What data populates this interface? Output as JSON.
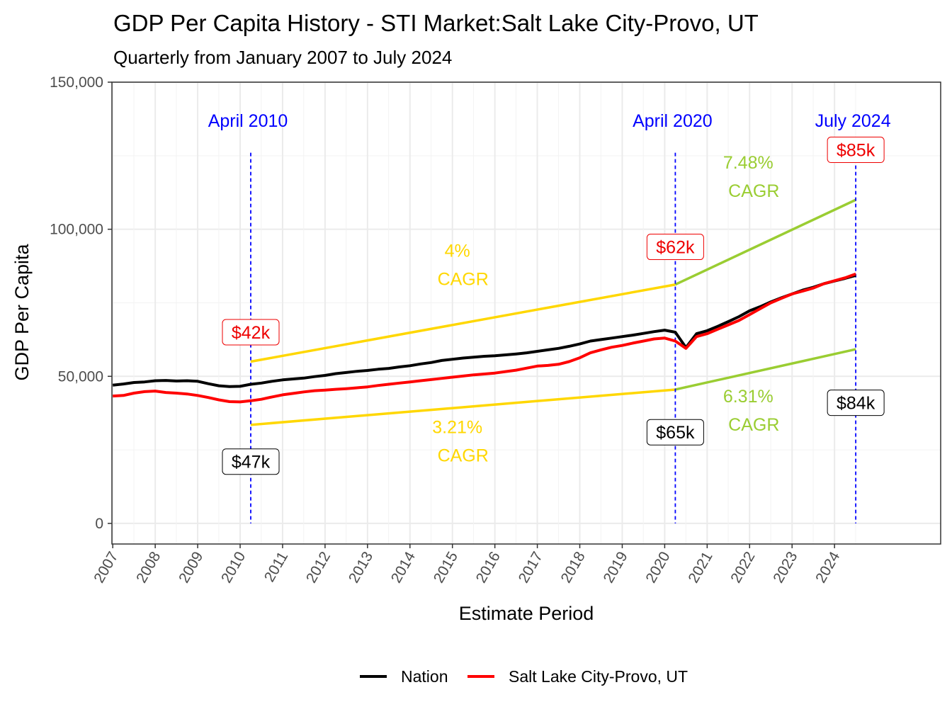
{
  "chart_data": {
    "type": "line",
    "title": "GDP Per Capita History - STI Market:Salt Lake City-Provo, UT",
    "subtitle": "Quarterly from January 2007 to July 2024",
    "xlabel": "Estimate Period",
    "ylabel": "GDP Per Capita",
    "xlim": [
      2006.98,
      2026.5
    ],
    "ylim": [
      -7000,
      150000
    ],
    "y_ticks": [
      0,
      50000,
      100000,
      150000
    ],
    "y_tick_labels": [
      "0",
      "50,000",
      "100,000",
      "150,000"
    ],
    "x_ticks": [
      "2007",
      "2008",
      "2009",
      "2010",
      "2011",
      "2012",
      "2013",
      "2014",
      "2015",
      "2016",
      "2017",
      "2018",
      "2019",
      "2020",
      "2021",
      "2022",
      "2023",
      "2024"
    ],
    "legend": {
      "position": "bottom",
      "entries": [
        {
          "name": "Nation",
          "color": "#000000"
        },
        {
          "name": "Salt Lake City-Provo, UT",
          "color": "#ff0000"
        }
      ]
    },
    "series": [
      {
        "name": "Nation",
        "color": "#000000",
        "points": [
          [
            2007.0,
            47000
          ],
          [
            2007.25,
            47400
          ],
          [
            2007.5,
            47900
          ],
          [
            2007.75,
            48100
          ],
          [
            2008.0,
            48500
          ],
          [
            2008.25,
            48600
          ],
          [
            2008.5,
            48400
          ],
          [
            2008.75,
            48500
          ],
          [
            2009.0,
            48300
          ],
          [
            2009.25,
            47500
          ],
          [
            2009.5,
            46800
          ],
          [
            2009.75,
            46500
          ],
          [
            2010.0,
            46600
          ],
          [
            2010.25,
            47300
          ],
          [
            2010.5,
            47700
          ],
          [
            2010.75,
            48300
          ],
          [
            2011.0,
            48800
          ],
          [
            2011.25,
            49100
          ],
          [
            2011.5,
            49400
          ],
          [
            2011.75,
            49900
          ],
          [
            2012.0,
            50300
          ],
          [
            2012.25,
            50900
          ],
          [
            2012.5,
            51300
          ],
          [
            2012.75,
            51700
          ],
          [
            2013.0,
            52000
          ],
          [
            2013.25,
            52400
          ],
          [
            2013.5,
            52700
          ],
          [
            2013.75,
            53200
          ],
          [
            2014.0,
            53600
          ],
          [
            2014.25,
            54200
          ],
          [
            2014.5,
            54700
          ],
          [
            2014.75,
            55400
          ],
          [
            2015.0,
            55800
          ],
          [
            2015.25,
            56200
          ],
          [
            2015.5,
            56500
          ],
          [
            2015.75,
            56800
          ],
          [
            2016.0,
            57000
          ],
          [
            2016.25,
            57300
          ],
          [
            2016.5,
            57600
          ],
          [
            2016.75,
            58000
          ],
          [
            2017.0,
            58500
          ],
          [
            2017.25,
            59000
          ],
          [
            2017.5,
            59500
          ],
          [
            2017.75,
            60200
          ],
          [
            2018.0,
            61000
          ],
          [
            2018.25,
            62000
          ],
          [
            2018.5,
            62500
          ],
          [
            2018.75,
            63000
          ],
          [
            2019.0,
            63500
          ],
          [
            2019.25,
            64000
          ],
          [
            2019.5,
            64600
          ],
          [
            2019.75,
            65200
          ],
          [
            2020.0,
            65700
          ],
          [
            2020.25,
            65000
          ],
          [
            2020.5,
            59800
          ],
          [
            2020.75,
            64500
          ],
          [
            2021.0,
            65500
          ],
          [
            2021.25,
            67000
          ],
          [
            2021.5,
            68600
          ],
          [
            2021.75,
            70300
          ],
          [
            2022.0,
            72300
          ],
          [
            2022.25,
            73700
          ],
          [
            2022.5,
            75300
          ],
          [
            2022.75,
            76700
          ],
          [
            2023.0,
            78000
          ],
          [
            2023.25,
            79300
          ],
          [
            2023.5,
            80300
          ],
          [
            2023.75,
            81500
          ],
          [
            2024.0,
            82400
          ],
          [
            2024.25,
            83300
          ],
          [
            2024.5,
            84300
          ]
        ]
      },
      {
        "name": "Salt Lake City-Provo, UT",
        "color": "#ff0000",
        "points": [
          [
            2007.0,
            43300
          ],
          [
            2007.25,
            43500
          ],
          [
            2007.5,
            44300
          ],
          [
            2007.75,
            44800
          ],
          [
            2008.0,
            45000
          ],
          [
            2008.25,
            44500
          ],
          [
            2008.5,
            44300
          ],
          [
            2008.75,
            44000
          ],
          [
            2009.0,
            43500
          ],
          [
            2009.25,
            42800
          ],
          [
            2009.5,
            42000
          ],
          [
            2009.75,
            41400
          ],
          [
            2010.0,
            41300
          ],
          [
            2010.25,
            41700
          ],
          [
            2010.5,
            42200
          ],
          [
            2010.75,
            43000
          ],
          [
            2011.0,
            43700
          ],
          [
            2011.25,
            44200
          ],
          [
            2011.5,
            44700
          ],
          [
            2011.75,
            45100
          ],
          [
            2012.0,
            45300
          ],
          [
            2012.25,
            45600
          ],
          [
            2012.5,
            45800
          ],
          [
            2012.75,
            46100
          ],
          [
            2013.0,
            46400
          ],
          [
            2013.25,
            46900
          ],
          [
            2013.5,
            47300
          ],
          [
            2013.75,
            47700
          ],
          [
            2014.0,
            48100
          ],
          [
            2014.25,
            48500
          ],
          [
            2014.5,
            48900
          ],
          [
            2014.75,
            49300
          ],
          [
            2015.0,
            49700
          ],
          [
            2015.25,
            50100
          ],
          [
            2015.5,
            50500
          ],
          [
            2015.75,
            50800
          ],
          [
            2016.0,
            51100
          ],
          [
            2016.25,
            51600
          ],
          [
            2016.5,
            52100
          ],
          [
            2016.75,
            52800
          ],
          [
            2017.0,
            53500
          ],
          [
            2017.25,
            53700
          ],
          [
            2017.5,
            54100
          ],
          [
            2017.75,
            55000
          ],
          [
            2018.0,
            56300
          ],
          [
            2018.25,
            58000
          ],
          [
            2018.5,
            59000
          ],
          [
            2018.75,
            59900
          ],
          [
            2019.0,
            60500
          ],
          [
            2019.25,
            61300
          ],
          [
            2019.5,
            62000
          ],
          [
            2019.75,
            62700
          ],
          [
            2020.0,
            63000
          ],
          [
            2020.25,
            62000
          ],
          [
            2020.5,
            59500
          ],
          [
            2020.75,
            63500
          ],
          [
            2021.0,
            64500
          ],
          [
            2021.25,
            66000
          ],
          [
            2021.5,
            67500
          ],
          [
            2021.75,
            69000
          ],
          [
            2022.0,
            71000
          ],
          [
            2022.25,
            73000
          ],
          [
            2022.5,
            75000
          ],
          [
            2022.75,
            76500
          ],
          [
            2023.0,
            78000
          ],
          [
            2023.25,
            79000
          ],
          [
            2023.5,
            80000
          ],
          [
            2023.75,
            81500
          ],
          [
            2024.0,
            82500
          ],
          [
            2024.25,
            83500
          ],
          [
            2024.5,
            84800
          ]
        ]
      }
    ],
    "trend_lines": [
      {
        "name": "upper-2010-2020",
        "color": "#ffd700",
        "points": [
          [
            2010.25,
            55000
          ],
          [
            2020.25,
            81200
          ]
        ]
      },
      {
        "name": "upper-2020-2024",
        "color": "#9acd32",
        "points": [
          [
            2020.25,
            81200
          ],
          [
            2024.5,
            110000
          ]
        ]
      },
      {
        "name": "lower-2010-2020",
        "color": "#ffd700",
        "points": [
          [
            2010.25,
            33500
          ],
          [
            2020.25,
            45500
          ]
        ]
      },
      {
        "name": "lower-2020-2024",
        "color": "#9acd32",
        "points": [
          [
            2020.25,
            45500
          ],
          [
            2024.5,
            59200
          ]
        ]
      }
    ],
    "reference_lines": [
      {
        "x": 2010.25,
        "label": "April 2010"
      },
      {
        "x": 2020.25,
        "label": "April 2020"
      },
      {
        "x": 2024.5,
        "label": "July 2024"
      }
    ],
    "cagr_annotations": [
      {
        "pct": "4%",
        "word": "CAGR",
        "color": "#ffd700",
        "x": 2015.25,
        "y": 88000
      },
      {
        "pct": "3.21%",
        "word": "CAGR",
        "color": "#ffd700",
        "x": 2015.25,
        "y": 28000
      },
      {
        "pct": "7.48%",
        "word": "CAGR",
        "color": "#9acd32",
        "x": 2022.1,
        "y": 118000
      },
      {
        "pct": "6.31%",
        "word": "CAGR",
        "color": "#9acd32",
        "x": 2022.1,
        "y": 38500
      }
    ],
    "value_labels": [
      {
        "text": "$42k",
        "series": "Salt Lake City-Provo, UT",
        "x": 2010.25,
        "y": 65000
      },
      {
        "text": "$62k",
        "series": "Salt Lake City-Provo, UT",
        "x": 2020.25,
        "y": 94000
      },
      {
        "text": "$85k",
        "series": "Salt Lake City-Provo, UT",
        "x": 2024.5,
        "y": 127000
      },
      {
        "text": "$47k",
        "series": "Nation",
        "x": 2010.25,
        "y": 21000
      },
      {
        "text": "$65k",
        "series": "Nation",
        "x": 2020.25,
        "y": 31000
      },
      {
        "text": "$84k",
        "series": "Nation",
        "x": 2024.5,
        "y": 41000
      }
    ]
  }
}
